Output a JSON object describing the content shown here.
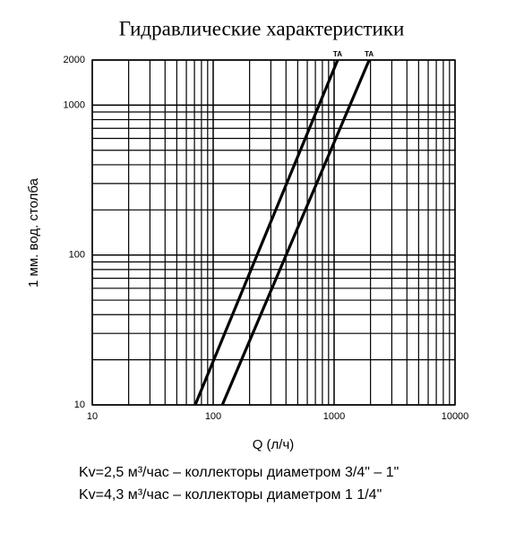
{
  "chart_data": {
    "type": "line",
    "title": "Гидравлические характеристики",
    "xlabel": "Q (л/ч)",
    "ylabel": "1 мм. вод. столба",
    "x_log": true,
    "y_log": true,
    "grid": true,
    "xlim": [
      10,
      10000
    ],
    "ylim": [
      10,
      2000
    ],
    "xticks": [
      10,
      100,
      1000,
      10000
    ],
    "yticks": [
      10,
      100,
      1000,
      2000
    ],
    "series": [
      {
        "name": "TA",
        "color": "#000000",
        "x": [
          71,
          1070
        ],
        "values": [
          10,
          2000
        ]
      },
      {
        "name": "TA",
        "color": "#000000",
        "x": [
          119,
          1950
        ],
        "values": [
          10,
          2000
        ]
      }
    ],
    "notes": [
      "Kv=2,5 м³/час – коллекторы диаметром 3/4\" – 1\"",
      "Kv=4,3 м³/час – коллекторы диаметром 1 1/4\""
    ]
  }
}
